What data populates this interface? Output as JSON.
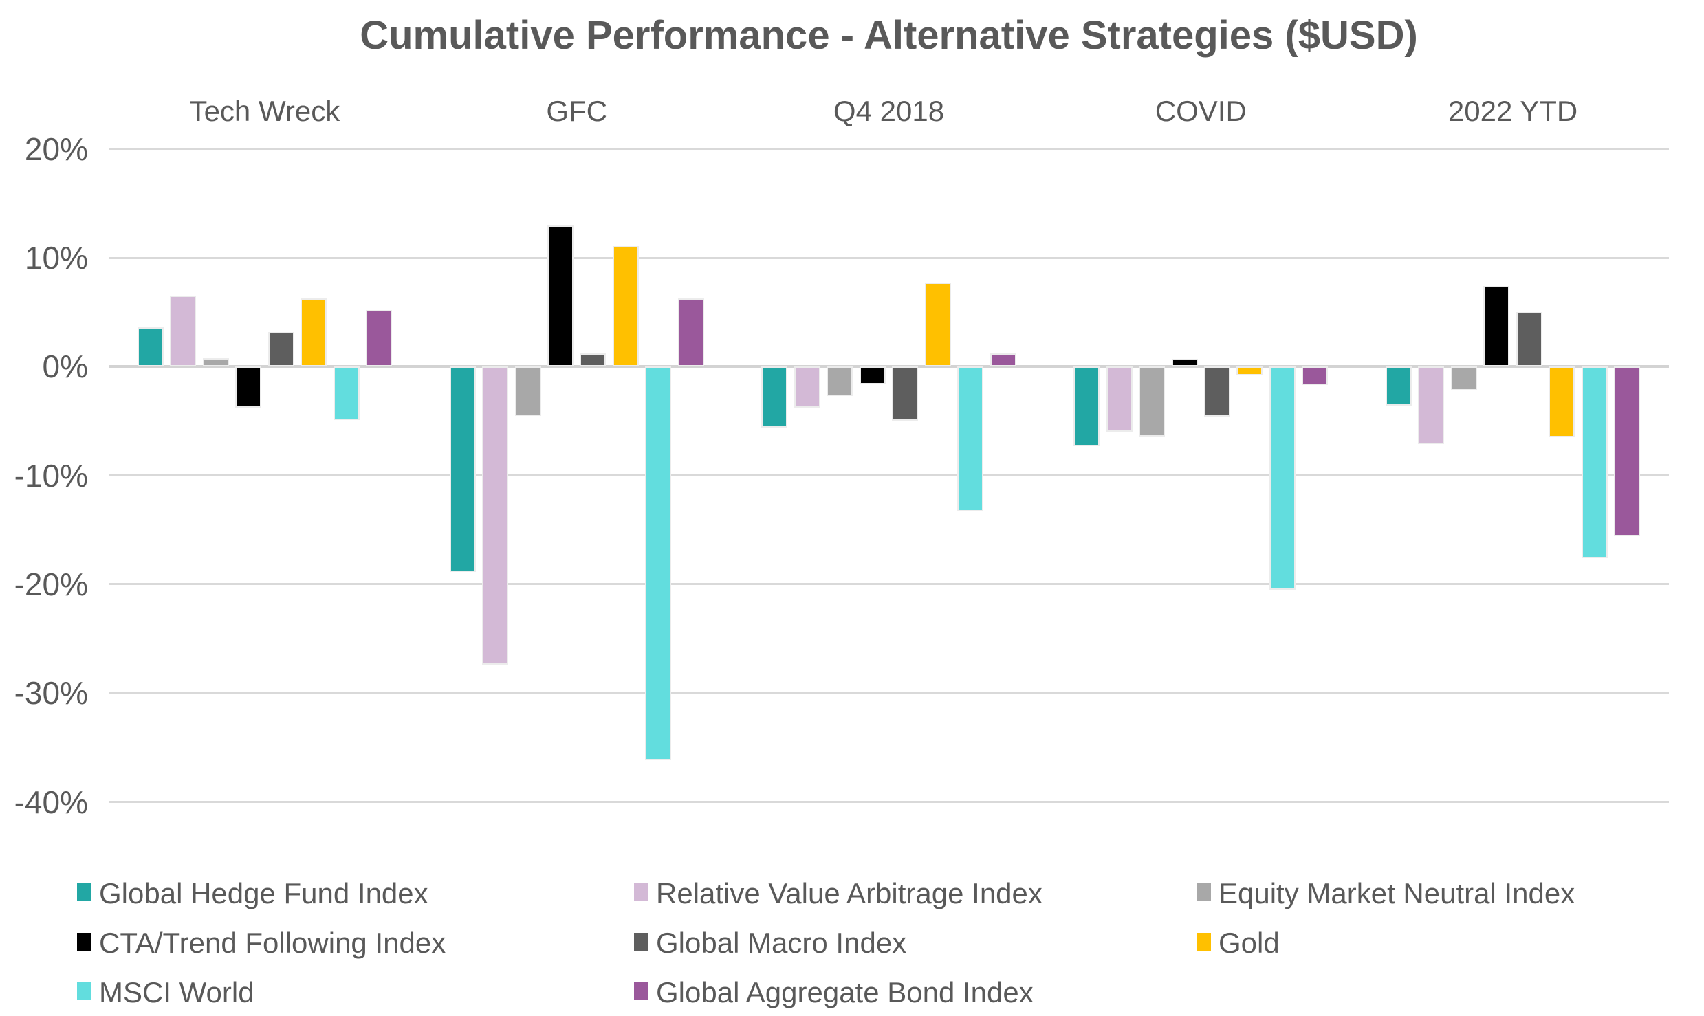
{
  "title": "Cumulative Performance - Alternative Strategies ($USD)",
  "y_axis": {
    "unit": "%",
    "ticks": [
      {
        "value": 20,
        "label": "20%"
      },
      {
        "value": 10,
        "label": "10%"
      },
      {
        "value": 0,
        "label": "0%"
      },
      {
        "value": -10,
        "label": "-10%"
      },
      {
        "value": -20,
        "label": "-20%"
      },
      {
        "value": -30,
        "label": "-30%"
      },
      {
        "value": -40,
        "label": "-40%"
      }
    ]
  },
  "chart_data": {
    "type": "bar",
    "title": "Cumulative Performance - Alternative Strategies ($USD)",
    "xlabel": "",
    "ylabel": "",
    "ylim": [
      -40,
      20
    ],
    "grid": true,
    "legend_position": "bottom",
    "categories": [
      "Tech Wreck",
      "GFC",
      "Q4 2018",
      "COVID",
      "2022 YTD"
    ],
    "series": [
      {
        "name": "Global Hedge Fund Index",
        "color": "#22A7A4",
        "values": [
          3.6,
          -18.9,
          -5.6,
          -7.3,
          -3.6
        ]
      },
      {
        "name": "Relative Value Arbitrage Index",
        "color": "#D3B9D6",
        "values": [
          6.5,
          -27.4,
          -3.8,
          -6.0,
          -7.1
        ]
      },
      {
        "name": "Equity Market Neutral Index",
        "color": "#A8A8A8",
        "values": [
          0.8,
          -4.5,
          -2.7,
          -6.4,
          -2.2
        ]
      },
      {
        "name": "CTA/Trend Following Index",
        "color": "#000000",
        "values": [
          -3.8,
          13.0,
          -1.6,
          0.7,
          7.4
        ]
      },
      {
        "name": "Global Macro Index",
        "color": "#5E5E5E",
        "values": [
          3.2,
          1.2,
          -5.0,
          -4.6,
          5.0
        ]
      },
      {
        "name": "Gold",
        "color": "#FFC000",
        "values": [
          6.3,
          11.1,
          7.7,
          -0.8,
          -6.5
        ]
      },
      {
        "name": "MSCI World",
        "color": "#62DDDE",
        "values": [
          -4.9,
          -36.2,
          -13.3,
          -20.5,
          -17.6
        ]
      },
      {
        "name": "Global Aggregate Bond Index",
        "color": "#9A589B",
        "values": [
          5.2,
          6.3,
          1.2,
          -1.7,
          -15.6
        ]
      }
    ],
    "colors": {
      "text": "#595959",
      "gridline": "#d9d9d9",
      "background": "#ffffff"
    }
  }
}
